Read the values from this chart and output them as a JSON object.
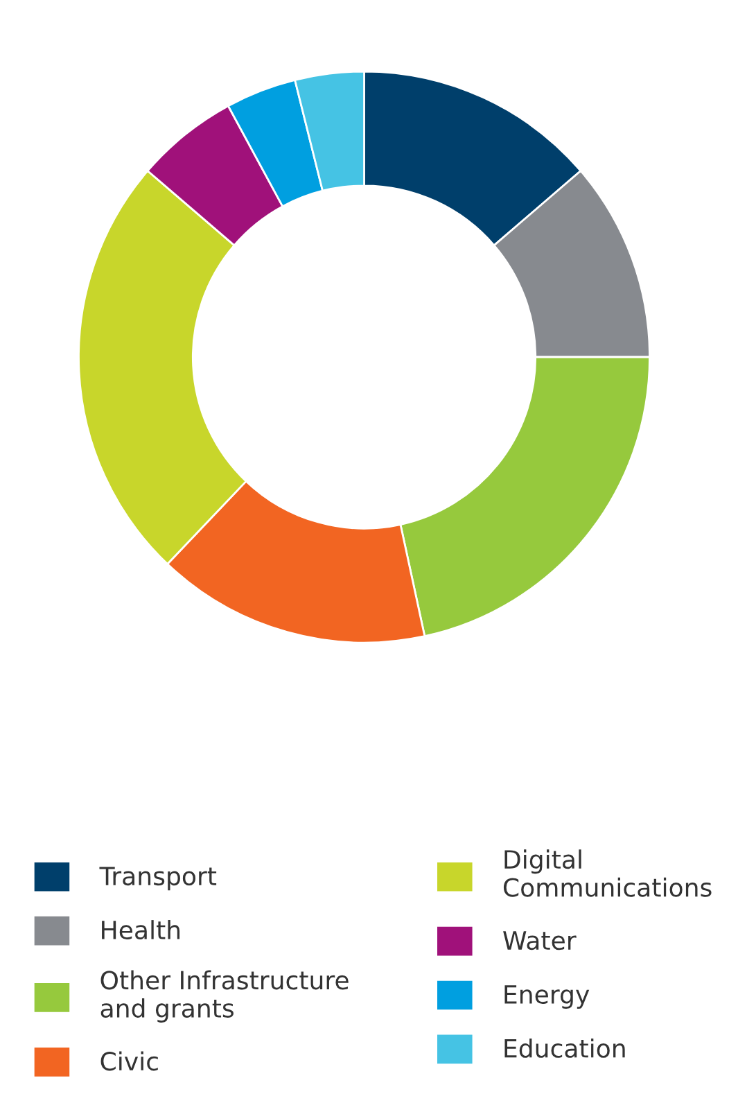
{
  "chart_data": {
    "type": "donut",
    "categories": [
      "Transport",
      "Health",
      "Other Infrastructure\nand grants",
      "Civic",
      "Digital\nCommunications",
      "Water",
      "Energy",
      "Education"
    ],
    "values": [
      13.7,
      11.3,
      21.6,
      15.5,
      24.2,
      5.8,
      4.0,
      3.9
    ],
    "colors": [
      "#003f6b",
      "#878a8f",
      "#96c93d",
      "#f26522",
      "#c8d62b",
      "#a0117a",
      "#009fe0",
      "#45c3e4"
    ],
    "legend": "bottom"
  }
}
